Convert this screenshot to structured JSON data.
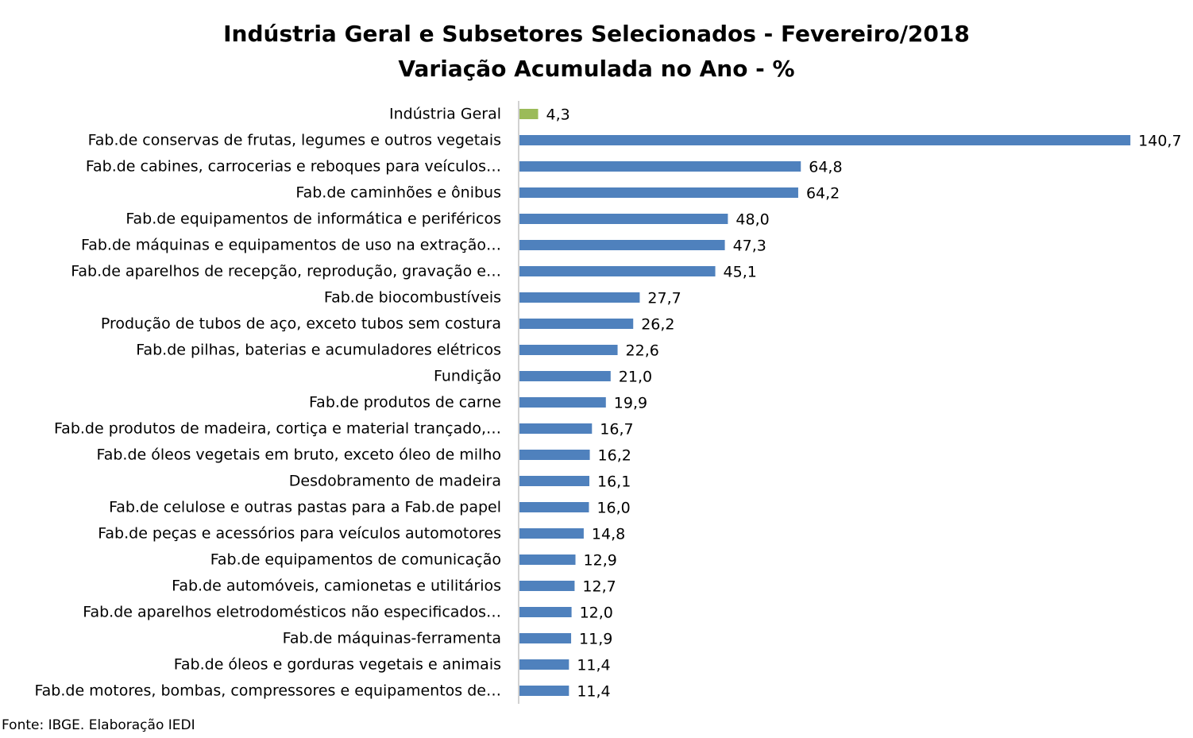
{
  "chart_data": {
    "type": "bar",
    "orientation": "horizontal",
    "title": "Indústria Geral e Subsetores Selecionados - Fevereiro/2018",
    "subtitle": "Variação Acumulada no Ano - %",
    "xlabel": "",
    "ylabel": "",
    "xlim": [
      0,
      150
    ],
    "grid": false,
    "legend": "none",
    "categories": [
      "Indústria Geral",
      "Fab.de conservas de frutas, legumes e outros vegetais",
      "Fab.de cabines, carrocerias e reboques para veículos…",
      "Fab.de caminhões e ônibus",
      "Fab.de equipamentos de informática e periféricos",
      "Fab.de máquinas e equipamentos de uso na extração…",
      "Fab.de aparelhos de recepção, reprodução, gravação e…",
      "Fab.de biocombustíveis",
      "Produção de tubos de aço, exceto tubos sem costura",
      "Fab.de pilhas, baterias e acumuladores elétricos",
      "Fundição",
      "Fab.de produtos de carne",
      "Fab.de produtos de madeira, cortiça e material trançado,…",
      "Fab.de óleos vegetais em bruto, exceto óleo de milho",
      "Desdobramento de madeira",
      "Fab.de celulose e outras pastas para a Fab.de papel",
      "Fab.de peças e acessórios para veículos automotores",
      "Fab.de equipamentos de comunicação",
      "Fab.de automóveis, camionetas e utilitários",
      "Fab.de aparelhos eletrodomésticos não especificados…",
      "Fab.de máquinas-ferramenta",
      "Fab.de óleos e gorduras vegetais e animais",
      "Fab.de motores, bombas, compressores e equipamentos de…"
    ],
    "values": [
      4.3,
      140.7,
      64.8,
      64.2,
      48.0,
      47.3,
      45.1,
      27.7,
      26.2,
      22.6,
      21.0,
      19.9,
      16.7,
      16.2,
      16.1,
      16.0,
      14.8,
      12.9,
      12.7,
      12.0,
      11.9,
      11.4,
      11.4
    ],
    "value_labels": [
      "4,3",
      "140,7",
      "64,8",
      "64,2",
      "48,0",
      "47,3",
      "45,1",
      "27,7",
      "26,2",
      "22,6",
      "21,0",
      "19,9",
      "16,7",
      "16,2",
      "16,1",
      "16,0",
      "14,8",
      "12,9",
      "12,7",
      "12,0",
      "11,9",
      "11,4",
      "11,4"
    ],
    "colors": {
      "highlight": "#9bbb59",
      "bar": "#4f81bd",
      "axis": "#a6a6a6"
    },
    "source": "Fonte: IBGE. Elaboração IEDI"
  }
}
